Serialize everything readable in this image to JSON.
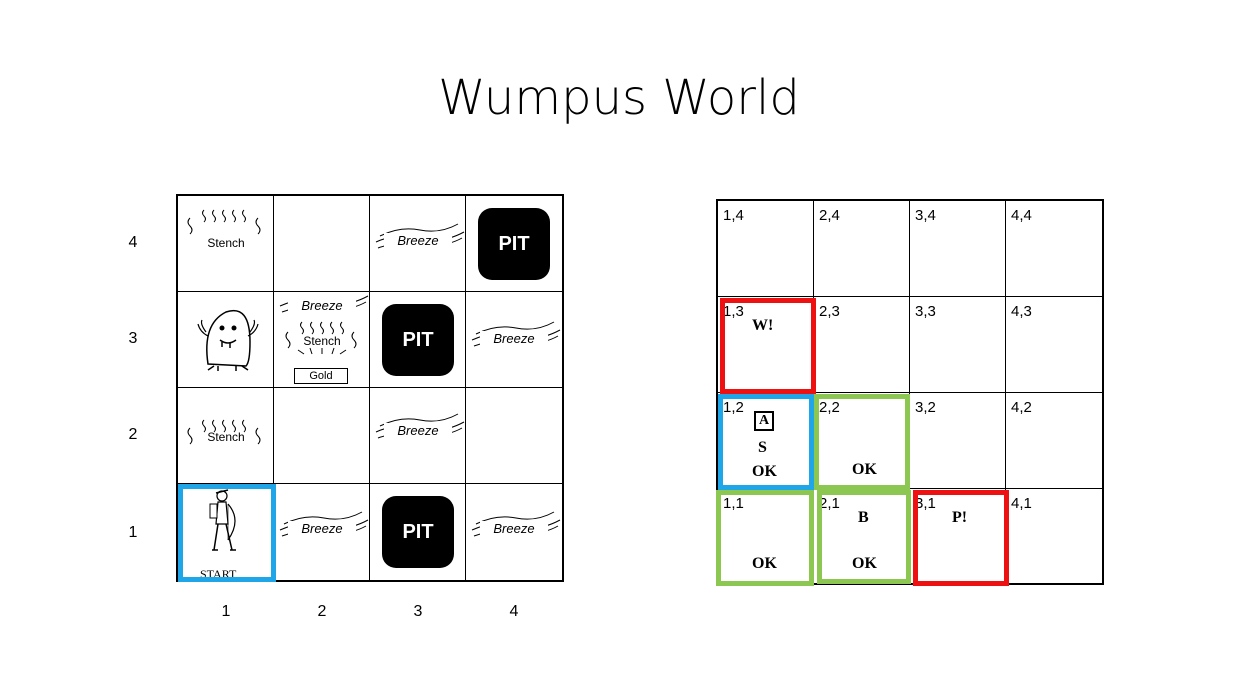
{
  "title": "Wumpus World",
  "colors": {
    "blue": "#1ea6e8",
    "green": "#8cc751",
    "red": "#ee1111"
  },
  "world": {
    "row_labels": [
      "4",
      "3",
      "2",
      "1"
    ],
    "col_labels": [
      "1",
      "2",
      "3",
      "4"
    ],
    "pit_label": "PIT",
    "stench_label": "Stench",
    "breeze_label": "Breeze",
    "gold_label": "Gold",
    "start_label": "START"
  },
  "kb": {
    "coords": {
      "c14": "1,4",
      "c24": "2,4",
      "c34": "3,4",
      "c44": "4,4",
      "c13": "1,3",
      "c23": "2,3",
      "c33": "3,3",
      "c43": "4,3",
      "c12": "1,2",
      "c22": "2,2",
      "c32": "3,2",
      "c42": "4,2",
      "c11": "1,1",
      "c21": "2,1",
      "c31": "3,1",
      "c41": "4,1"
    },
    "wumpus_mark": "W!",
    "pit_mark": "P!",
    "agent_mark": "A",
    "stench_mark": "S",
    "breeze_mark": "B",
    "ok_mark": "OK"
  }
}
